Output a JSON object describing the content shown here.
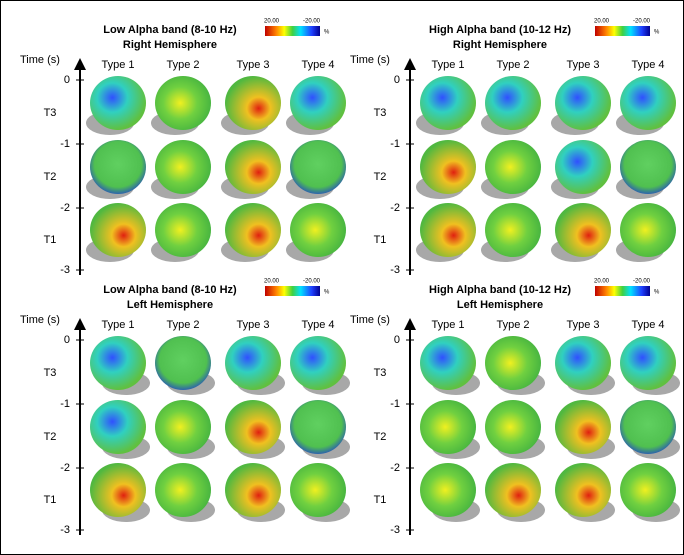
{
  "panels": [
    {
      "title": "Low Alpha band (8-10 Hz)",
      "subtitle": "Right Hemisphere",
      "colorbar": {
        "max": "20.00",
        "min": "-20.00",
        "unit": "%"
      },
      "axis_label": "Time (s)",
      "ticks": [
        "0",
        "-1",
        "-2",
        "-3"
      ],
      "rows": [
        "T3",
        "T2",
        "T1"
      ],
      "columns": [
        "Type 1",
        "Type 2",
        "Type 3",
        "Type 4"
      ]
    },
    {
      "title": "High Alpha band (10-12 Hz)",
      "subtitle": "Right Hemisphere",
      "colorbar": {
        "max": "20.00",
        "min": "-20.00",
        "unit": "%"
      },
      "axis_label": "Time (s)",
      "ticks": [
        "0",
        "-1",
        "-2",
        "-3"
      ],
      "rows": [
        "T3",
        "T2",
        "T1"
      ],
      "columns": [
        "Type 1",
        "Type 2",
        "Type 3",
        "Type 4"
      ]
    },
    {
      "title": "Low Alpha band (8-10 Hz)",
      "subtitle": "Left Hemisphere",
      "colorbar": {
        "max": "20.00",
        "min": "-20.00",
        "unit": "%"
      },
      "axis_label": "Time (s)",
      "ticks": [
        "0",
        "-1",
        "-2",
        "-3"
      ],
      "rows": [
        "T3",
        "T2",
        "T1"
      ],
      "columns": [
        "Type 1",
        "Type 2",
        "Type 3",
        "Type 4"
      ]
    },
    {
      "title": "High Alpha band (10-12 Hz)",
      "subtitle": "Left Hemisphere",
      "colorbar": {
        "max": "20.00",
        "min": "-20.00",
        "unit": "%"
      },
      "axis_label": "Time (s)",
      "ticks": [
        "0",
        "-1",
        "-2",
        "-3"
      ],
      "rows": [
        "T3",
        "T2",
        "T1"
      ],
      "columns": [
        "Type 1",
        "Type 2",
        "Type 3",
        "Type 4"
      ]
    }
  ]
}
